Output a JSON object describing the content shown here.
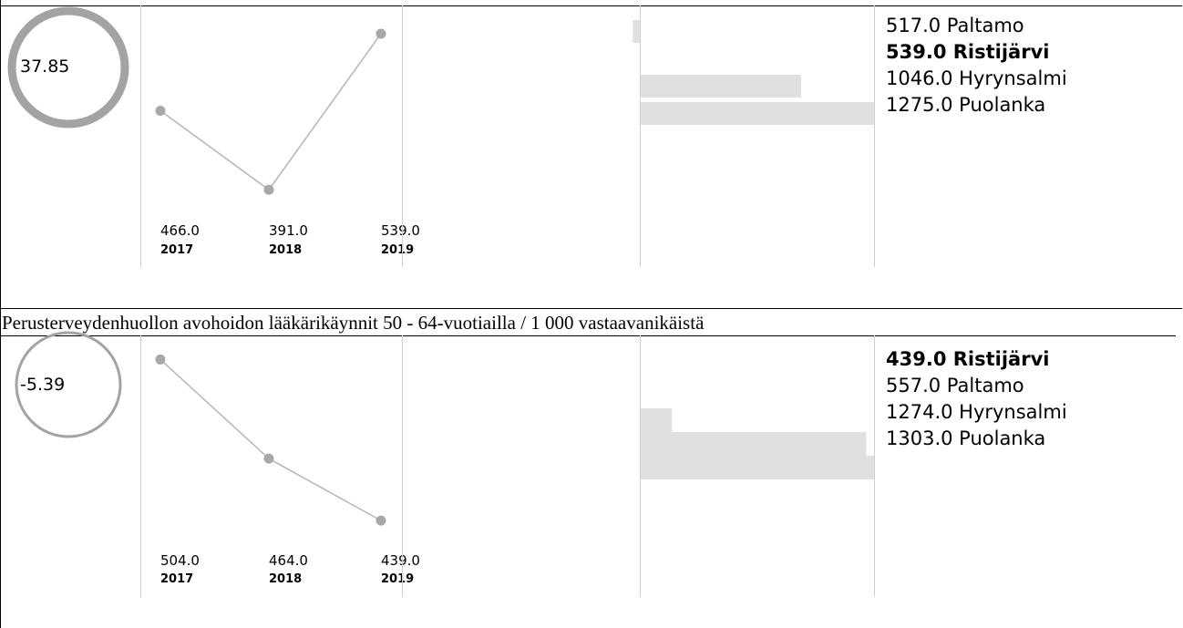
{
  "panels": [
    {
      "gauge_value": "37.85",
      "gauge_style": "thick",
      "chart_data": {
        "type": "line",
        "categories": [
          "2017",
          "2018",
          "2019"
        ],
        "values": [
          466.0,
          391.0,
          539.0
        ],
        "value_labels": [
          "466.0",
          "391.0",
          "539.0"
        ]
      },
      "ranking": {
        "type": "bar",
        "items": [
          {
            "value": 517.0,
            "label": "517.0 Paltamo",
            "highlight": false
          },
          {
            "value": 539.0,
            "label": "539.0 Ristijärvi",
            "highlight": true
          },
          {
            "value": 1046.0,
            "label": "1046.0 Hyrynsalmi",
            "highlight": false
          },
          {
            "value": 1275.0,
            "label": "1275.0 Puolanka",
            "highlight": false
          }
        ]
      }
    },
    {
      "title": "Perusterveydenhuollon avohoidon lääkärikäynnit 50 - 64-vuotiailla / 1 000 vastaavanikäistä",
      "gauge_value": "-5.39",
      "gauge_style": "thin",
      "chart_data": {
        "type": "line",
        "categories": [
          "2017",
          "2018",
          "2019"
        ],
        "values": [
          504.0,
          464.0,
          439.0
        ],
        "value_labels": [
          "504.0",
          "464.0",
          "439.0"
        ]
      },
      "ranking": {
        "type": "bar",
        "items": [
          {
            "value": 439.0,
            "label": "439.0 Ristijärvi",
            "highlight": true
          },
          {
            "value": 557.0,
            "label": "557.0 Paltamo",
            "highlight": false
          },
          {
            "value": 1274.0,
            "label": "1274.0 Hyrynsalmi",
            "highlight": false
          },
          {
            "value": 1303.0,
            "label": "1303.0 Puolanka",
            "highlight": false
          }
        ]
      }
    }
  ],
  "colors": {
    "gauge_ring": "#a3a3a3",
    "line": "#b5b5b5",
    "point": "#a8a8a8",
    "bar": "#e0e0e0",
    "divider": "#cfcfcf",
    "border": "#000000"
  }
}
